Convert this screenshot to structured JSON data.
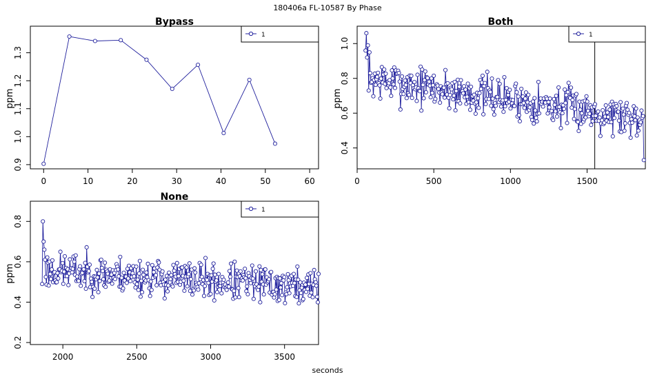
{
  "figure": {
    "title": "180406a    FL-10587   By Phase",
    "xlabel": "seconds"
  },
  "colors": {
    "series": "#1f1f9c",
    "axis": "#000000"
  },
  "chart_data": [
    {
      "type": "line",
      "title": "Bypass",
      "ylabel": "ppm",
      "xlim": [
        -3,
        62
      ],
      "ylim": [
        0.885,
        1.395
      ],
      "xticks": [
        0,
        10,
        20,
        30,
        40,
        50,
        60
      ],
      "yticks": [
        0.9,
        1.0,
        1.1,
        1.2,
        1.3
      ],
      "ytick_labels": [
        "0.9",
        "1.0",
        "1.1",
        "1.2",
        "1.3"
      ],
      "legend": {
        "position": "top-right",
        "entries": [
          "1"
        ]
      },
      "series": [
        {
          "name": "1",
          "x": [
            0,
            5.8,
            11.6,
            17.4,
            23.2,
            29,
            34.8,
            40.6,
            46.4,
            52.2
          ],
          "y": [
            0.903,
            1.358,
            1.342,
            1.345,
            1.275,
            1.171,
            1.257,
            1.013,
            1.203,
            0.975
          ]
        }
      ]
    },
    {
      "type": "line",
      "title": "Both",
      "ylabel": "ppm",
      "xlim": [
        0,
        1880
      ],
      "ylim": [
        0.28,
        1.1
      ],
      "xticks": [
        0,
        500,
        1000,
        1500
      ],
      "yticks": [
        0.4,
        0.6,
        0.8,
        1.0
      ],
      "ytick_labels": [
        "0.4",
        "0.6",
        "0.8",
        "1.0"
      ],
      "legend": {
        "position": "top-right",
        "entries": [
          "1"
        ]
      },
      "vline_x": 1550,
      "series": [
        {
          "name": "1",
          "x_start": 55,
          "x_end": 1870,
          "trend_start": 0.8,
          "trend_end": 0.57,
          "noise": 0.11,
          "first_points": [
            0.96,
            1.06,
            0.92,
            0.99,
            0.73,
            0.95,
            0.83
          ],
          "last_point": 0.33,
          "n": 360,
          "seed": 7
        }
      ]
    },
    {
      "type": "line",
      "title": "None",
      "ylabel": "ppm",
      "xlim": [
        1780,
        3730
      ],
      "ylim": [
        0.19,
        0.9
      ],
      "xticks": [
        2000,
        2500,
        3000,
        3500
      ],
      "yticks": [
        0.2,
        0.4,
        0.6,
        0.8
      ],
      "ytick_labels": [
        "0.2",
        "0.4",
        "0.6",
        "0.8"
      ],
      "legend": {
        "position": "top-right",
        "entries": [
          "1"
        ]
      },
      "series": [
        {
          "name": "1",
          "x_start": 1860,
          "x_end": 3730,
          "trend_start": 0.56,
          "trend_end": 0.47,
          "noise": 0.085,
          "first_points": [
            0.49,
            0.8,
            0.7,
            0.66,
            0.61
          ],
          "last_point": 0.54,
          "n": 380,
          "seed": 23
        }
      ]
    }
  ]
}
